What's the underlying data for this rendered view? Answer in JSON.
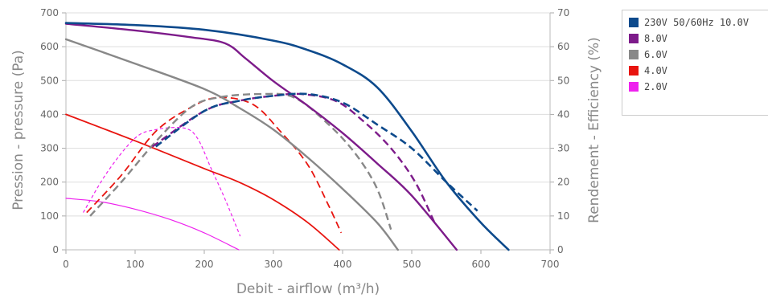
{
  "chart_data": {
    "type": "line",
    "xlabel": "Debit - airflow (m³/h)",
    "ylabel_left": "Pression - pressure (Pa)",
    "ylabel_right": "Rendement - Efficiency (%)",
    "xlim": [
      0,
      700
    ],
    "ylim_left": [
      0,
      700
    ],
    "ylim_right": [
      0,
      70
    ],
    "x_ticks": [
      0,
      100,
      200,
      300,
      400,
      500,
      600,
      700
    ],
    "y_left_ticks": [
      0,
      100,
      200,
      300,
      400,
      500,
      600,
      700
    ],
    "y_right_ticks": [
      0,
      10,
      20,
      30,
      40,
      50,
      60,
      70
    ],
    "grid": true,
    "legend_position": "right",
    "series": [
      {
        "name": "230V 50/60Hz 10.0V",
        "color": "#0d4a8c",
        "pressure": [
          [
            0,
            670
          ],
          [
            100,
            664
          ],
          [
            200,
            650
          ],
          [
            300,
            618
          ],
          [
            350,
            590
          ],
          [
            400,
            548
          ],
          [
            450,
            480
          ],
          [
            500,
            350
          ],
          [
            550,
            200
          ],
          [
            600,
            80
          ],
          [
            640,
            0
          ]
        ],
        "efficiency": [
          [
            130,
            30.5
          ],
          [
            200,
            41
          ],
          [
            250,
            44
          ],
          [
            300,
            45.5
          ],
          [
            350,
            46
          ],
          [
            400,
            43.5
          ],
          [
            450,
            37
          ],
          [
            500,
            30
          ],
          [
            550,
            20
          ],
          [
            595,
            11.5
          ]
        ]
      },
      {
        "name": "8.0V",
        "color": "#7d1b8a",
        "pressure": [
          [
            0,
            668
          ],
          [
            100,
            648
          ],
          [
            180,
            628
          ],
          [
            230,
            610
          ],
          [
            260,
            565
          ],
          [
            300,
            498
          ],
          [
            350,
            425
          ],
          [
            400,
            345
          ],
          [
            450,
            255
          ],
          [
            500,
            160
          ],
          [
            565,
            0
          ]
        ],
        "efficiency": [
          [
            125,
            30.5
          ],
          [
            200,
            41
          ],
          [
            250,
            44
          ],
          [
            300,
            45.5
          ],
          [
            340,
            46
          ],
          [
            390,
            44
          ],
          [
            430,
            38
          ],
          [
            470,
            30
          ],
          [
            505,
            20
          ],
          [
            533,
            8
          ]
        ]
      },
      {
        "name": "6.0V",
        "color": "#888888",
        "pressure": [
          [
            0,
            622
          ],
          [
            100,
            550
          ],
          [
            200,
            475
          ],
          [
            250,
            420
          ],
          [
            300,
            355
          ],
          [
            350,
            272
          ],
          [
            400,
            180
          ],
          [
            450,
            80
          ],
          [
            480,
            0
          ]
        ],
        "efficiency": [
          [
            35,
            10
          ],
          [
            80,
            20
          ],
          [
            130,
            32
          ],
          [
            180,
            42
          ],
          [
            220,
            45
          ],
          [
            280,
            46
          ],
          [
            330,
            45
          ],
          [
            380,
            37
          ],
          [
            420,
            28
          ],
          [
            450,
            18
          ],
          [
            470,
            6
          ]
        ]
      },
      {
        "name": "4.0V",
        "color": "#e8140f",
        "pressure": [
          [
            0,
            400
          ],
          [
            100,
            322
          ],
          [
            200,
            240
          ],
          [
            250,
            200
          ],
          [
            300,
            148
          ],
          [
            350,
            80
          ],
          [
            395,
            0
          ]
        ],
        "efficiency": [
          [
            30,
            11
          ],
          [
            80,
            22
          ],
          [
            130,
            35
          ],
          [
            180,
            42
          ],
          [
            220,
            45
          ],
          [
            270,
            43
          ],
          [
            310,
            35
          ],
          [
            350,
            25
          ],
          [
            380,
            13
          ],
          [
            398,
            5
          ]
        ]
      },
      {
        "name": "2.0V",
        "color": "#ee22ee",
        "pressure": [
          [
            0,
            152
          ],
          [
            50,
            142
          ],
          [
            100,
            120
          ],
          [
            150,
            90
          ],
          [
            200,
            50
          ],
          [
            250,
            0
          ]
        ],
        "efficiency": [
          [
            25,
            11
          ],
          [
            60,
            23
          ],
          [
            100,
            33
          ],
          [
            130,
            35.5
          ],
          [
            170,
            36
          ],
          [
            190,
            33
          ],
          [
            210,
            24
          ],
          [
            230,
            15
          ],
          [
            252,
            4
          ]
        ]
      }
    ]
  }
}
